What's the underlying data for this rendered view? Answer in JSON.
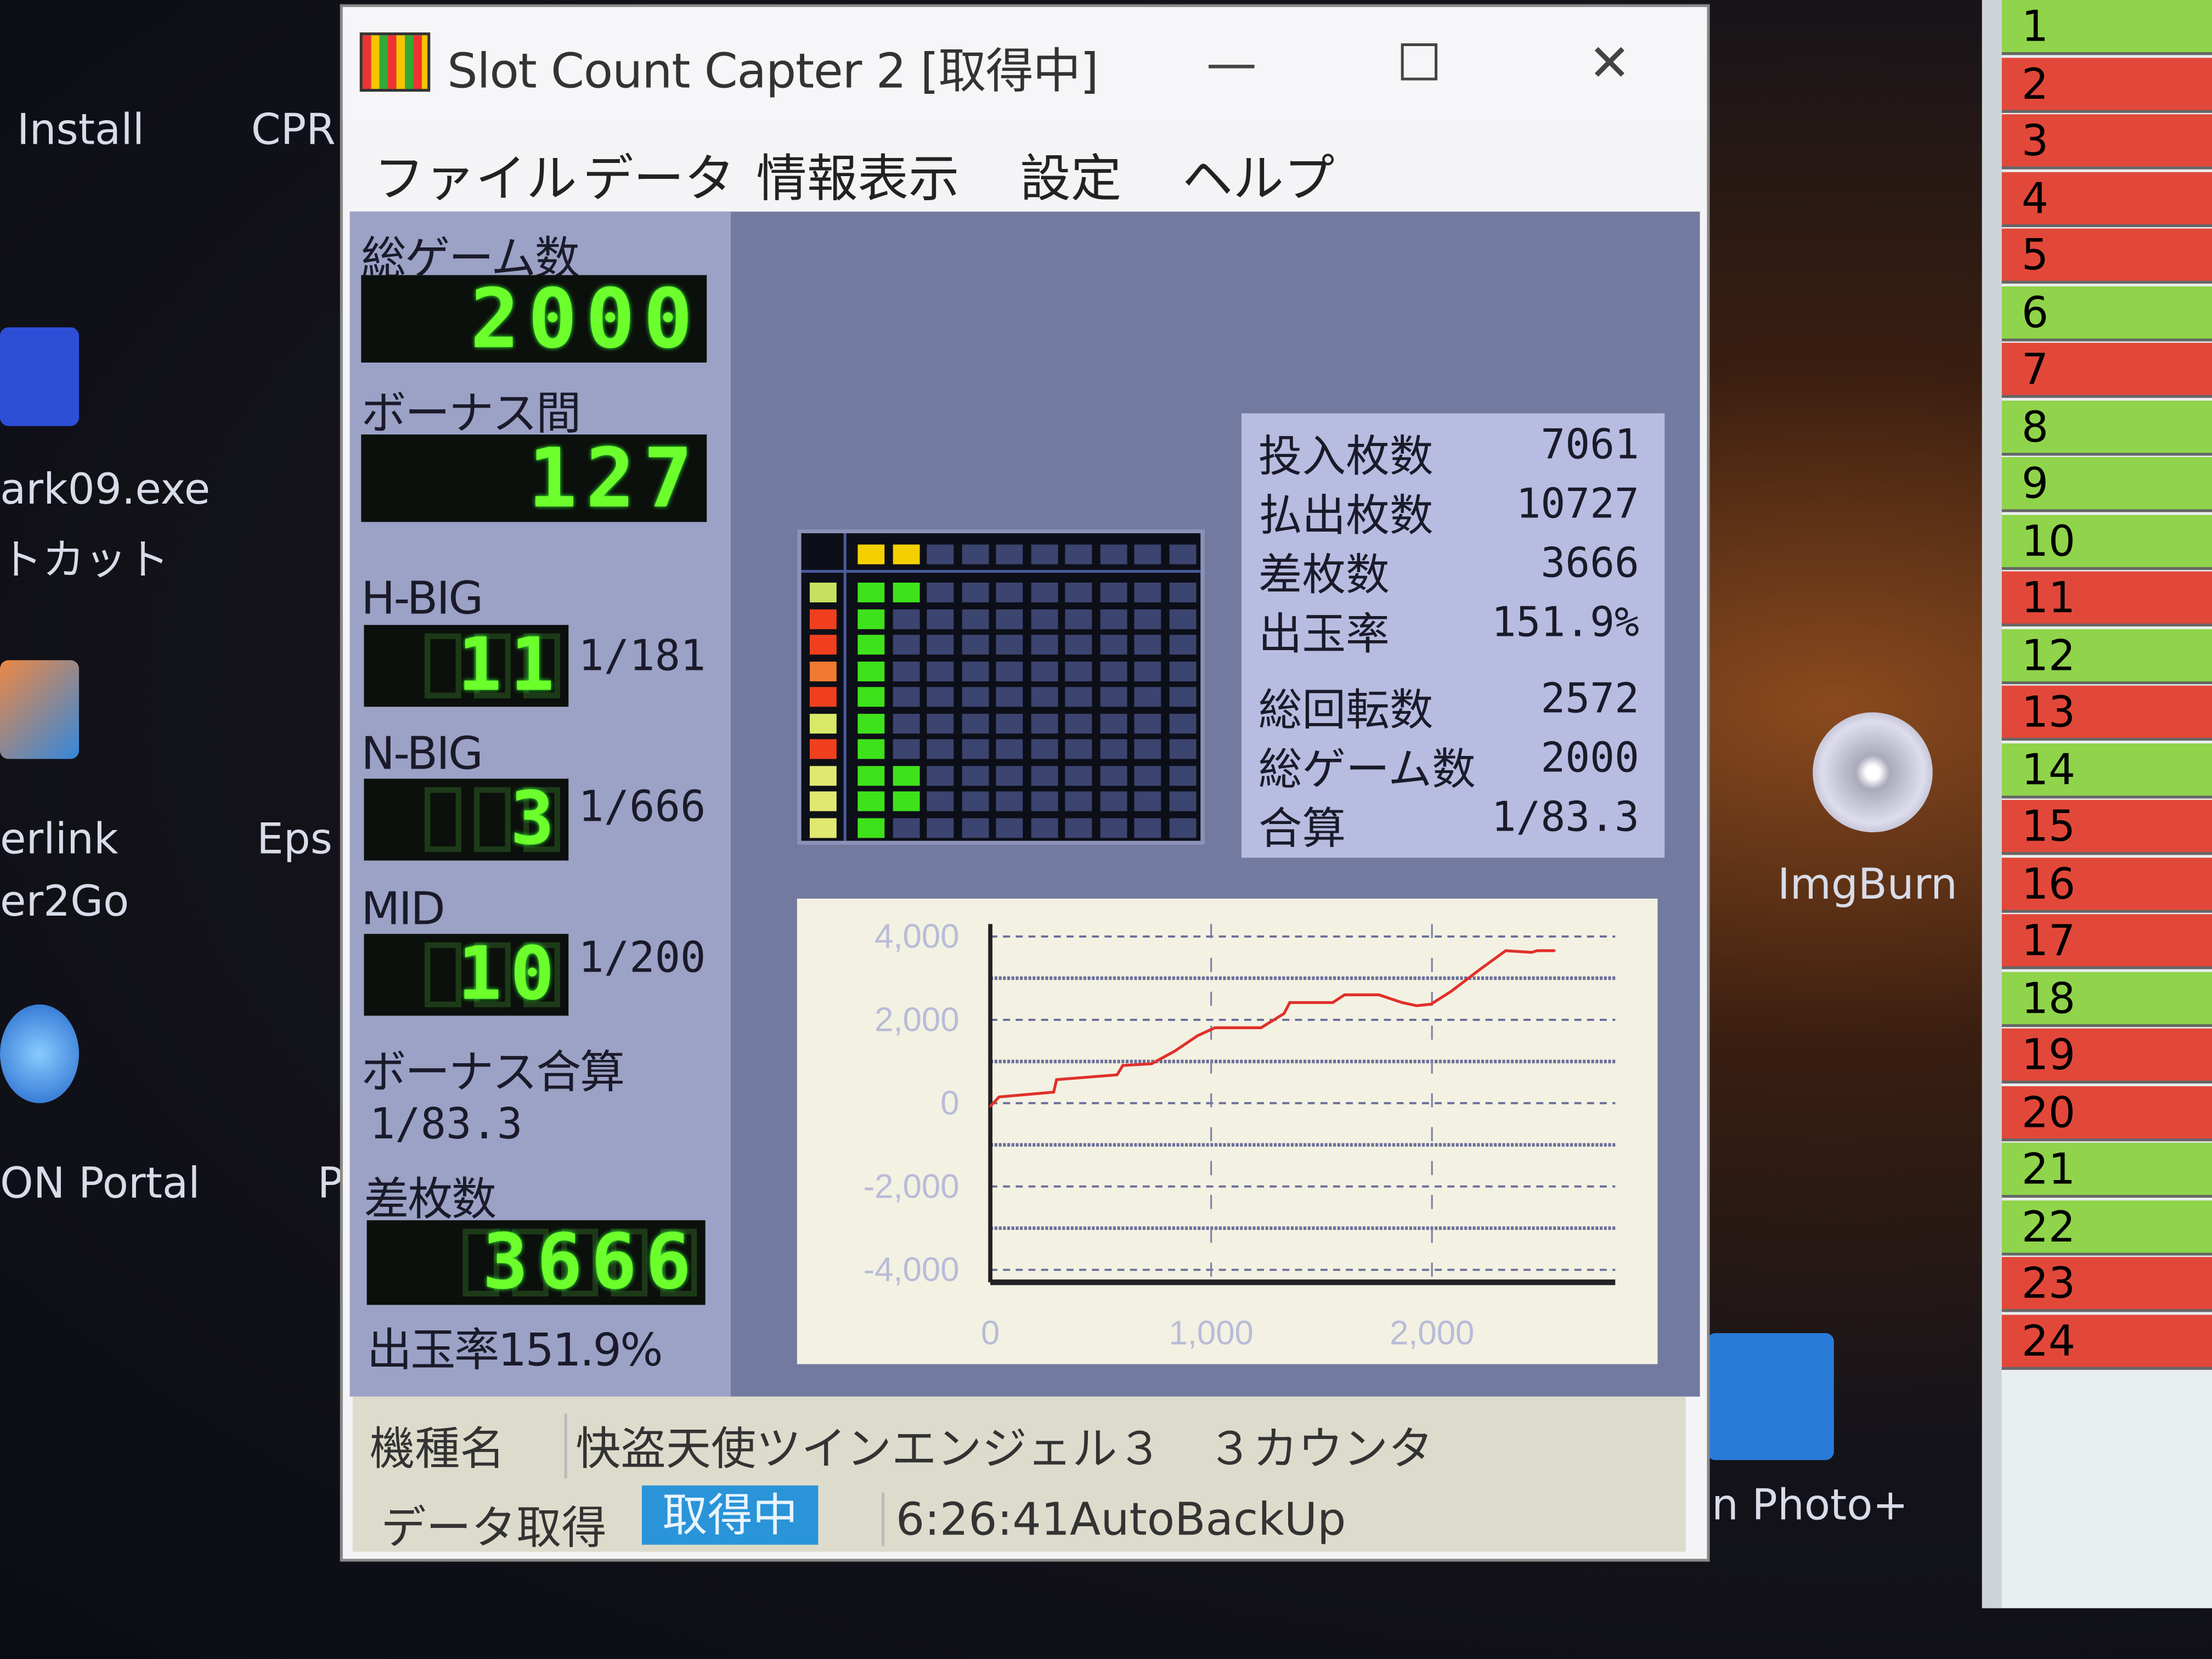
{
  "desktop": {
    "icons": [
      "Install",
      "CPR",
      "ark09.exe",
      "トカット",
      "erlink",
      "er2Go",
      "Eps",
      "ON Portal",
      "P",
      "ImgBurn",
      "on Photo+"
    ]
  },
  "sheet": {
    "rows": [
      {
        "n": "1",
        "c": "#8fd44a"
      },
      {
        "n": "2",
        "c": "#e2483a"
      },
      {
        "n": "3",
        "c": "#e2483a"
      },
      {
        "n": "4",
        "c": "#e2483a"
      },
      {
        "n": "5",
        "c": "#e2483a"
      },
      {
        "n": "6",
        "c": "#8fd44a"
      },
      {
        "n": "7",
        "c": "#e2483a"
      },
      {
        "n": "8",
        "c": "#8fd44a"
      },
      {
        "n": "9",
        "c": "#8fd44a"
      },
      {
        "n": "10",
        "c": "#8fd44a"
      },
      {
        "n": "11",
        "c": "#e2483a"
      },
      {
        "n": "12",
        "c": "#8fd44a"
      },
      {
        "n": "13",
        "c": "#e2483a"
      },
      {
        "n": "14",
        "c": "#8fd44a"
      },
      {
        "n": "15",
        "c": "#e2483a"
      },
      {
        "n": "16",
        "c": "#e2483a"
      },
      {
        "n": "17",
        "c": "#e2483a"
      },
      {
        "n": "18",
        "c": "#8fd44a"
      },
      {
        "n": "19",
        "c": "#e2483a"
      },
      {
        "n": "20",
        "c": "#e2483a"
      },
      {
        "n": "21",
        "c": "#8fd44a"
      },
      {
        "n": "22",
        "c": "#8fd44a"
      },
      {
        "n": "23",
        "c": "#e2483a"
      },
      {
        "n": "24",
        "c": "#e2483a"
      }
    ]
  },
  "window": {
    "title": "Slot Count Capter 2 [取得中]",
    "minimize": "—",
    "maximize": "☐",
    "close": "✕"
  },
  "menu": [
    "ファイル",
    "データ",
    "情報表示",
    "設定",
    "ヘルプ"
  ],
  "left": {
    "total_games_label": "総ゲーム数",
    "total_games": "2000",
    "bonus_interval_label": "ボーナス間",
    "bonus_interval": "127",
    "hbig_label": "H-BIG",
    "hbig": "11",
    "hbig_rate": "1/181",
    "nbig_label": "N-BIG",
    "nbig": "3",
    "nbig_rate": "1/666",
    "mid_label": "MID",
    "mid": "10",
    "mid_rate": "1/200",
    "bonus_total_label": "ボーナス合算",
    "bonus_total": "1/83.3",
    "diff_label": "差枚数",
    "diff": "3666",
    "payout": "出玉率151.9%"
  },
  "stats": [
    {
      "label": "投入枚数",
      "value": "7061"
    },
    {
      "label": "払出枚数",
      "value": "10727"
    },
    {
      "label": "差枚数",
      "value": "3666"
    },
    {
      "label": "出玉率",
      "value": "151.9%"
    },
    {
      "label": "総回転数",
      "value": "2572"
    },
    {
      "label": "総ゲーム数",
      "value": "2000"
    },
    {
      "label": "合算",
      "value": "1/83.3"
    }
  ],
  "led_grid": {
    "header_lit": 2,
    "rows": [
      {
        "side": "#c8e060",
        "lit": 2
      },
      {
        "side": "#f0401e",
        "lit": 1
      },
      {
        "side": "#f0401e",
        "lit": 1
      },
      {
        "side": "#f07a30",
        "lit": 1
      },
      {
        "side": "#f0401e",
        "lit": 1
      },
      {
        "side": "#d8e868",
        "lit": 1
      },
      {
        "side": "#f0401e",
        "lit": 1
      },
      {
        "side": "#e0e870",
        "lit": 2
      },
      {
        "side": "#e0e870",
        "lit": 2
      },
      {
        "side": "#e0e870",
        "lit": 1
      }
    ],
    "colors": {
      "header": "#f4d000",
      "lit": "#3ee21a",
      "off": "#3c4470"
    }
  },
  "chart_data": {
    "type": "line",
    "xlim": [
      0,
      2830
    ],
    "ylim": [
      -4300,
      4300
    ],
    "yticks": [
      "4,000",
      "2,000",
      "0",
      "-2,000",
      "-4,000"
    ],
    "ytick_values": [
      4000,
      2000,
      0,
      -2000,
      -4000
    ],
    "xticks": [
      "0",
      "1,000",
      "2,000"
    ],
    "xtick_values": [
      0,
      1000,
      2000
    ],
    "grid": true,
    "line_color": "#e0302a",
    "x": [
      0,
      40,
      287,
      300,
      574,
      600,
      730,
      834,
      939,
      1017,
      1226,
      1330,
      1356,
      1551,
      1604,
      1760,
      1864,
      1930,
      1995,
      2086,
      2216,
      2334,
      2451,
      2477,
      2555
    ],
    "y": [
      -75,
      150,
      265,
      565,
      680,
      905,
      945,
      1245,
      1620,
      1810,
      1810,
      2150,
      2415,
      2415,
      2600,
      2600,
      2415,
      2340,
      2375,
      2680,
      3205,
      3660,
      3620,
      3660,
      3660
    ]
  },
  "bottom": {
    "model_label": "機種名",
    "model": "快盗天使ツインエンジェル３　３カウンタ",
    "acq_label": "データ取得",
    "status": "取得中",
    "log": "6:26:41AutoBackUp"
  }
}
